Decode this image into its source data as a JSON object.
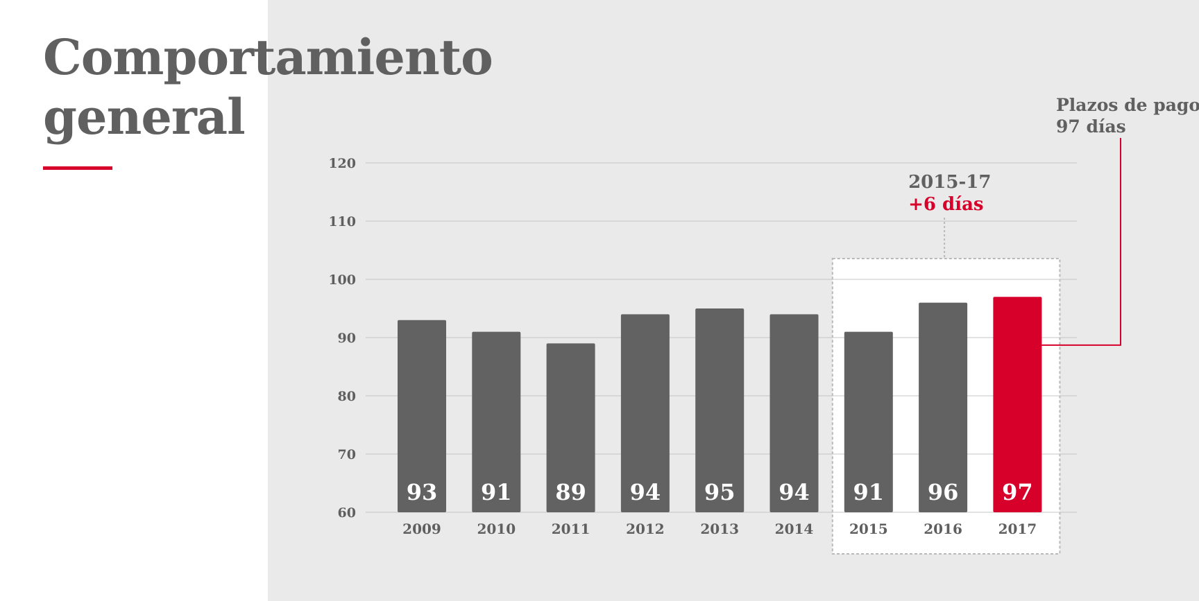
{
  "title": {
    "line1": "Comportamiento",
    "line2": "general"
  },
  "colors": {
    "bar": "#626262",
    "highlight": "#d6002a",
    "grid": "#c4c4c4",
    "text": "#5f5f5f",
    "panel": "#eaeaea"
  },
  "chart_data": {
    "type": "bar",
    "categories": [
      "2009",
      "2010",
      "2011",
      "2012",
      "2013",
      "2014",
      "2015",
      "2016",
      "2017"
    ],
    "values": [
      93,
      91,
      89,
      94,
      95,
      94,
      91,
      96,
      97
    ],
    "value_labels": [
      "93",
      "91",
      "89",
      "94",
      "95",
      "94",
      "91",
      "96",
      "97"
    ],
    "highlight_category": "2017",
    "ylim": [
      60,
      120
    ],
    "yticks": [
      60,
      70,
      80,
      90,
      100,
      110,
      120
    ],
    "grid": true,
    "annotations": {
      "range": {
        "from": "2015",
        "to": "2017",
        "line1": "2015-17",
        "line2": "+6 días"
      },
      "callout": {
        "category": "2017",
        "line1": "Plazos de pago",
        "line2": "97 días"
      }
    }
  }
}
